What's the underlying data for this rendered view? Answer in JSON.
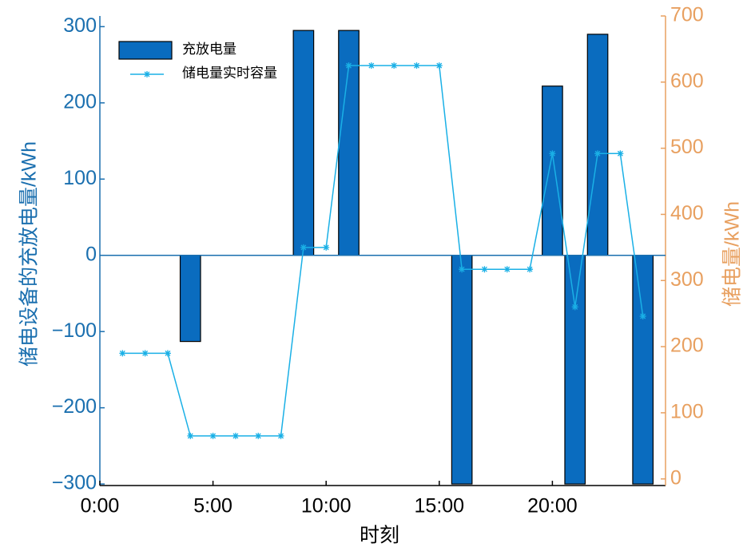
{
  "chart_data": {
    "type": "combo",
    "x_label": "时刻",
    "y_label": "储电设备的充放电量/kWh",
    "y2_label": "储电量/kWh",
    "x": [
      1,
      2,
      3,
      4,
      5,
      6,
      7,
      8,
      9,
      10,
      11,
      12,
      13,
      14,
      15,
      16,
      17,
      18,
      19,
      20,
      21,
      22,
      23,
      24
    ],
    "xlim": [
      0,
      25
    ],
    "xticks": [
      {
        "value": 0,
        "label": "0:00"
      },
      {
        "value": 5,
        "label": "5:00"
      },
      {
        "value": 10,
        "label": "10:00"
      },
      {
        "value": 15,
        "label": "15:00"
      },
      {
        "value": 20,
        "label": "20:00"
      }
    ],
    "ylim": [
      -302,
      314
    ],
    "yticks": [
      {
        "value": -300,
        "label": "−300"
      },
      {
        "value": -200,
        "label": "−200"
      },
      {
        "value": -100,
        "label": "−100"
      },
      0,
      100,
      200,
      300
    ],
    "y2lim": [
      -10,
      700
    ],
    "y2ticks": [
      0,
      100,
      200,
      300,
      400,
      500,
      600,
      700
    ],
    "series": [
      {
        "name": "充放电量",
        "type": "bar",
        "color": "#0a6cbf",
        "values": [
          0,
          0,
          0,
          -113,
          0,
          0,
          0,
          0,
          295,
          0,
          295,
          0,
          0,
          0,
          0,
          -300,
          0,
          0,
          0,
          222,
          -300,
          290,
          0,
          -300
        ]
      },
      {
        "name": "储电量实时容量",
        "type": "line",
        "axis": "y2",
        "color": "#1ab0e6",
        "values": [
          190,
          190,
          190,
          65,
          65,
          65,
          65,
          65,
          350,
          350,
          625,
          625,
          625,
          625,
          625,
          317,
          317,
          317,
          317,
          492,
          260,
          492,
          492,
          246
        ]
      }
    ]
  }
}
